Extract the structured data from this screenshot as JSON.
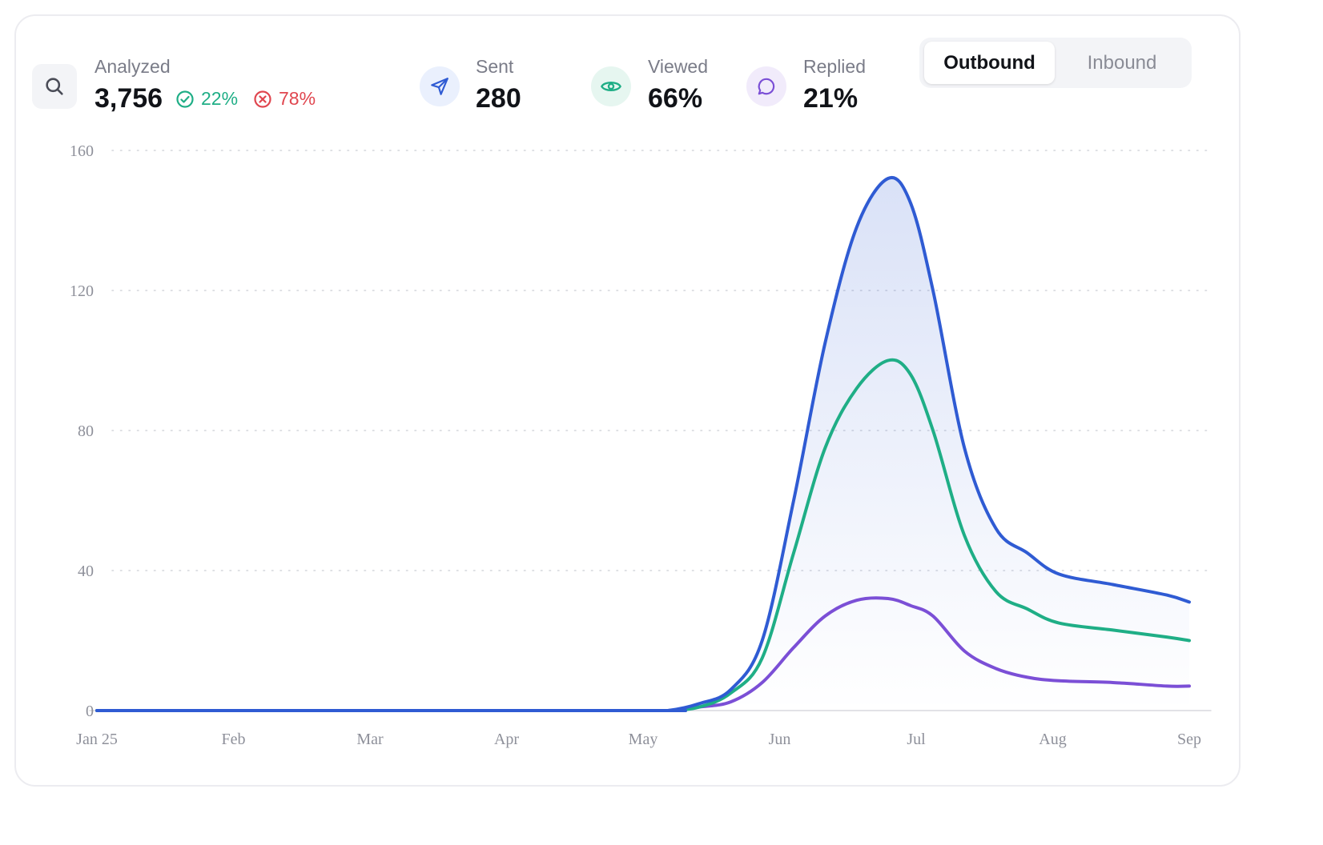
{
  "stats": {
    "analyzed": {
      "label": "Analyzed",
      "value": "3,756",
      "success_pct": "22%",
      "fail_pct": "78%",
      "icon": "search-icon"
    },
    "sent": {
      "label": "Sent",
      "value": "280",
      "icon": "send-icon"
    },
    "viewed": {
      "label": "Viewed",
      "value": "66%",
      "icon": "eye-icon"
    },
    "replied": {
      "label": "Replied",
      "value": "21%",
      "icon": "message-icon"
    }
  },
  "toggle": {
    "outbound": "Outbound",
    "inbound": "Inbound",
    "selected": "outbound"
  },
  "colors": {
    "sent": "#2f5bd3",
    "viewed": "#1fae86",
    "replied": "#7b4fd6",
    "success": "#1fae86",
    "fail": "#e0464f"
  },
  "chart_data": {
    "type": "line",
    "x_ticks": [
      "Jan 25",
      "Feb",
      "Mar",
      "Apr",
      "May",
      "Jun",
      "Jul",
      "Aug",
      "Sep"
    ],
    "y_ticks": [
      0,
      40,
      80,
      120,
      160
    ],
    "ylim": [
      0,
      160
    ],
    "grid": "horizontal dotted",
    "x_range": [
      "2025-01-01",
      "2025-09-01"
    ],
    "series": [
      {
        "key": "sent",
        "area_fill": true,
        "points": [
          [
            "2025-01-01",
            0
          ],
          [
            "2025-05-01",
            0
          ],
          [
            "2025-05-08",
            0
          ],
          [
            "2025-05-15",
            2
          ],
          [
            "2025-05-22",
            6
          ],
          [
            "2025-05-29",
            20
          ],
          [
            "2025-06-05",
            60
          ],
          [
            "2025-06-12",
            105
          ],
          [
            "2025-06-19",
            138
          ],
          [
            "2025-06-26",
            152
          ],
          [
            "2025-07-01",
            145
          ],
          [
            "2025-07-06",
            120
          ],
          [
            "2025-07-13",
            75
          ],
          [
            "2025-07-20",
            52
          ],
          [
            "2025-07-27",
            45
          ],
          [
            "2025-08-03",
            39
          ],
          [
            "2025-08-15",
            36
          ],
          [
            "2025-08-27",
            33
          ],
          [
            "2025-09-01",
            31
          ]
        ]
      },
      {
        "key": "viewed",
        "points": [
          [
            "2025-01-01",
            0
          ],
          [
            "2025-05-01",
            0
          ],
          [
            "2025-05-08",
            0
          ],
          [
            "2025-05-15",
            1
          ],
          [
            "2025-05-22",
            5
          ],
          [
            "2025-05-29",
            15
          ],
          [
            "2025-06-05",
            45
          ],
          [
            "2025-06-12",
            75
          ],
          [
            "2025-06-19",
            92
          ],
          [
            "2025-06-26",
            100
          ],
          [
            "2025-07-01",
            96
          ],
          [
            "2025-07-06",
            80
          ],
          [
            "2025-07-13",
            50
          ],
          [
            "2025-07-20",
            34
          ],
          [
            "2025-07-27",
            29
          ],
          [
            "2025-08-03",
            25
          ],
          [
            "2025-08-15",
            23
          ],
          [
            "2025-08-27",
            21
          ],
          [
            "2025-09-01",
            20
          ]
        ]
      },
      {
        "key": "replied",
        "points": [
          [
            "2025-01-01",
            0
          ],
          [
            "2025-05-01",
            0
          ],
          [
            "2025-05-08",
            0
          ],
          [
            "2025-05-15",
            1
          ],
          [
            "2025-05-22",
            2.5
          ],
          [
            "2025-05-29",
            8
          ],
          [
            "2025-06-05",
            18
          ],
          [
            "2025-06-12",
            27
          ],
          [
            "2025-06-19",
            31.5
          ],
          [
            "2025-06-26",
            32
          ],
          [
            "2025-07-01",
            30
          ],
          [
            "2025-07-06",
            27
          ],
          [
            "2025-07-13",
            17
          ],
          [
            "2025-07-20",
            12
          ],
          [
            "2025-07-27",
            9.5
          ],
          [
            "2025-08-03",
            8.5
          ],
          [
            "2025-08-15",
            8
          ],
          [
            "2025-08-27",
            7
          ],
          [
            "2025-09-01",
            7
          ]
        ]
      }
    ]
  }
}
